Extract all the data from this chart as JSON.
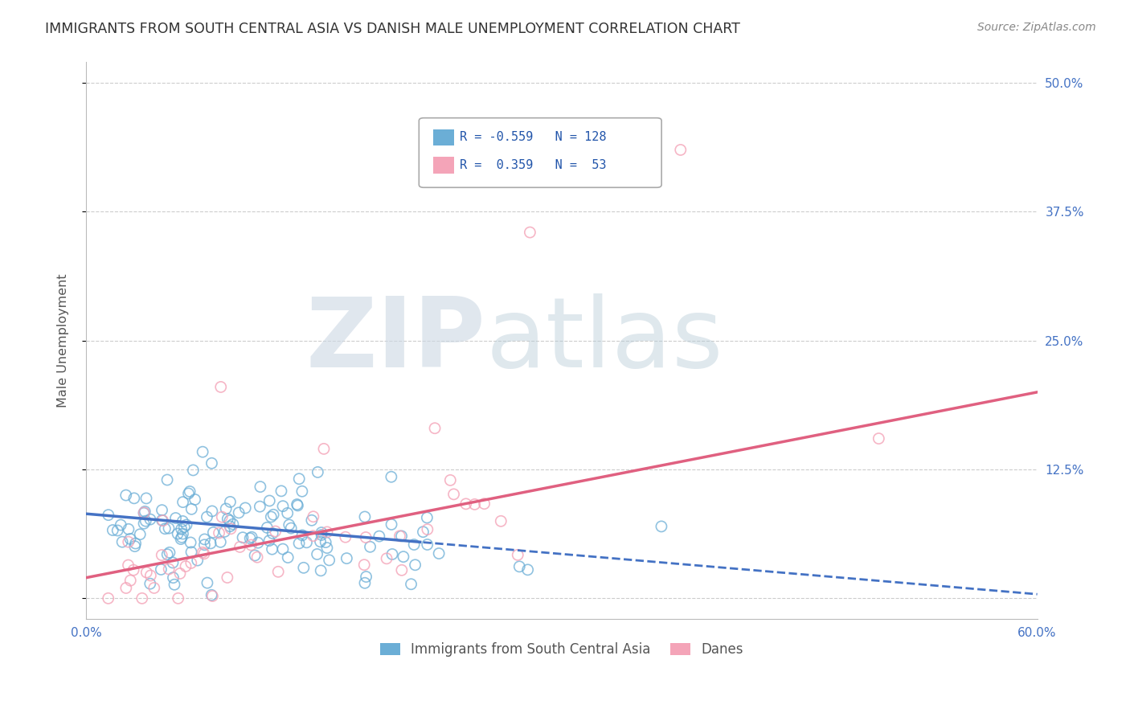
{
  "title": "IMMIGRANTS FROM SOUTH CENTRAL ASIA VS DANISH MALE UNEMPLOYMENT CORRELATION CHART",
  "source": "Source: ZipAtlas.com",
  "ylabel": "Male Unemployment",
  "legend_label1": "Immigrants from South Central Asia",
  "legend_label2": "Danes",
  "R1": -0.559,
  "N1": 128,
  "R2": 0.359,
  "N2": 53,
  "color1": "#6baed6",
  "color2": "#f4a4b8",
  "trendline1_color": "#4472c4",
  "trendline2_color": "#e06080",
  "xlim": [
    0.0,
    0.6
  ],
  "ylim": [
    -0.02,
    0.52
  ],
  "yticks": [
    0.0,
    0.125,
    0.25,
    0.375,
    0.5
  ],
  "ytick_labels": [
    "",
    "12.5%",
    "25.0%",
    "37.5%",
    "50.0%"
  ],
  "xticks": [
    0.0,
    0.6
  ],
  "xtick_labels": [
    "0.0%",
    "60.0%"
  ],
  "background_color": "#ffffff",
  "watermark_zip_color": "#c8d8e8",
  "watermark_atlas_color": "#b8ccd8",
  "grid_color": "#cccccc",
  "title_color": "#333333",
  "axis_label_color": "#555555",
  "tick_label_color": "#4472c4",
  "legend_box_color1": "#6baed6",
  "legend_box_color2": "#f4a4b8",
  "seed1": 42,
  "seed2": 123,
  "trendline1_intercept": 0.082,
  "trendline1_slope": -0.13,
  "trendline2_intercept": 0.02,
  "trendline2_slope": 0.3
}
